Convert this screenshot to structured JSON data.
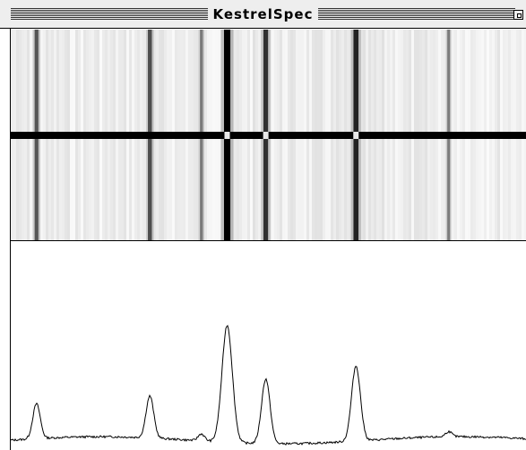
{
  "window": {
    "title": "KestrelSpec"
  },
  "spectrum": {
    "description_type": "spectral line profile",
    "peaks": [
      {
        "position": 0.05,
        "height": 0.2
      },
      {
        "position": 0.27,
        "height": 0.24
      },
      {
        "position": 0.37,
        "height": 0.04
      },
      {
        "position": 0.42,
        "height": 0.67
      },
      {
        "position": 0.495,
        "height": 0.37
      },
      {
        "position": 0.67,
        "height": 0.43
      },
      {
        "position": 0.85,
        "height": 0.03
      }
    ]
  }
}
